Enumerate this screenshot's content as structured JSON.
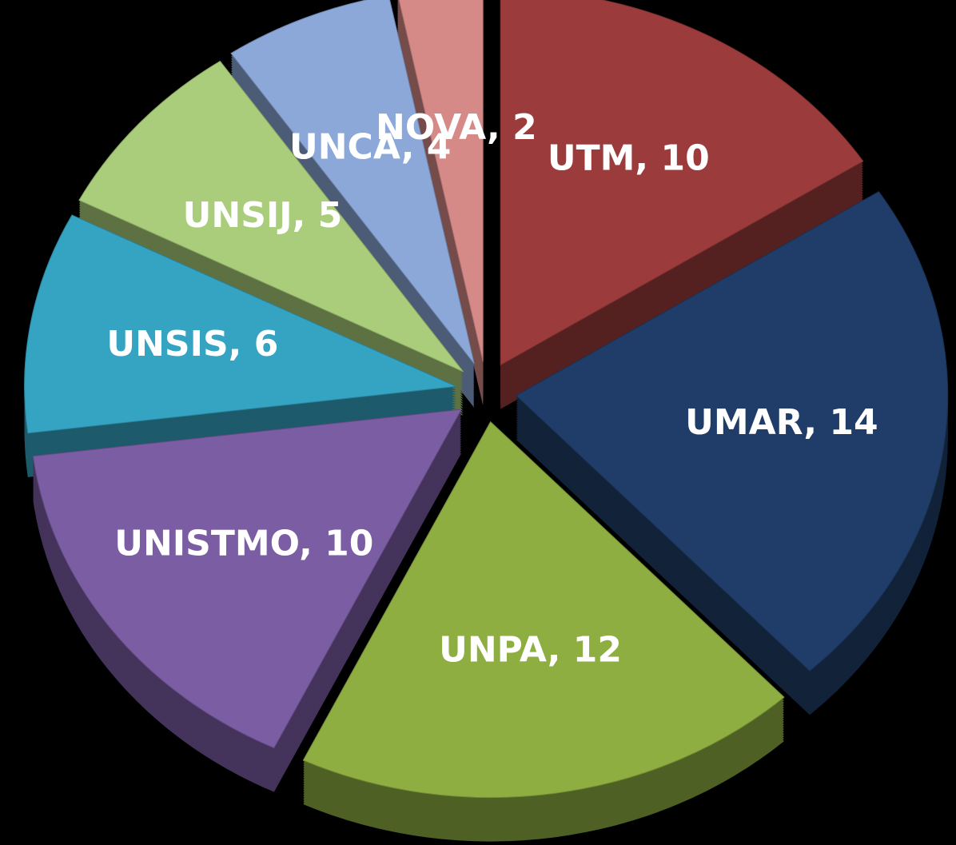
{
  "chart_data": {
    "type": "pie",
    "categories": [
      "UTM",
      "UMAR",
      "UNPA",
      "UNISTMO",
      "UNSIS",
      "UNSIJ",
      "UNCA",
      "NOVA"
    ],
    "values": [
      10,
      14,
      12,
      10,
      6,
      5,
      4,
      2
    ],
    "value_labels": [
      "UTM, 10",
      "UMAR, 14",
      "UNPA, 12",
      "UNISTMO, 10",
      "UNSIS, 6",
      "UNSIJ, 5",
      "UNCA, 4",
      "NOVA, 2"
    ],
    "colors": [
      "#9b3b3b",
      "#1f3d68",
      "#8eae42",
      "#7b5da3",
      "#35a3c2",
      "#a9cd7a",
      "#8ba8d8",
      "#d58a88"
    ]
  }
}
